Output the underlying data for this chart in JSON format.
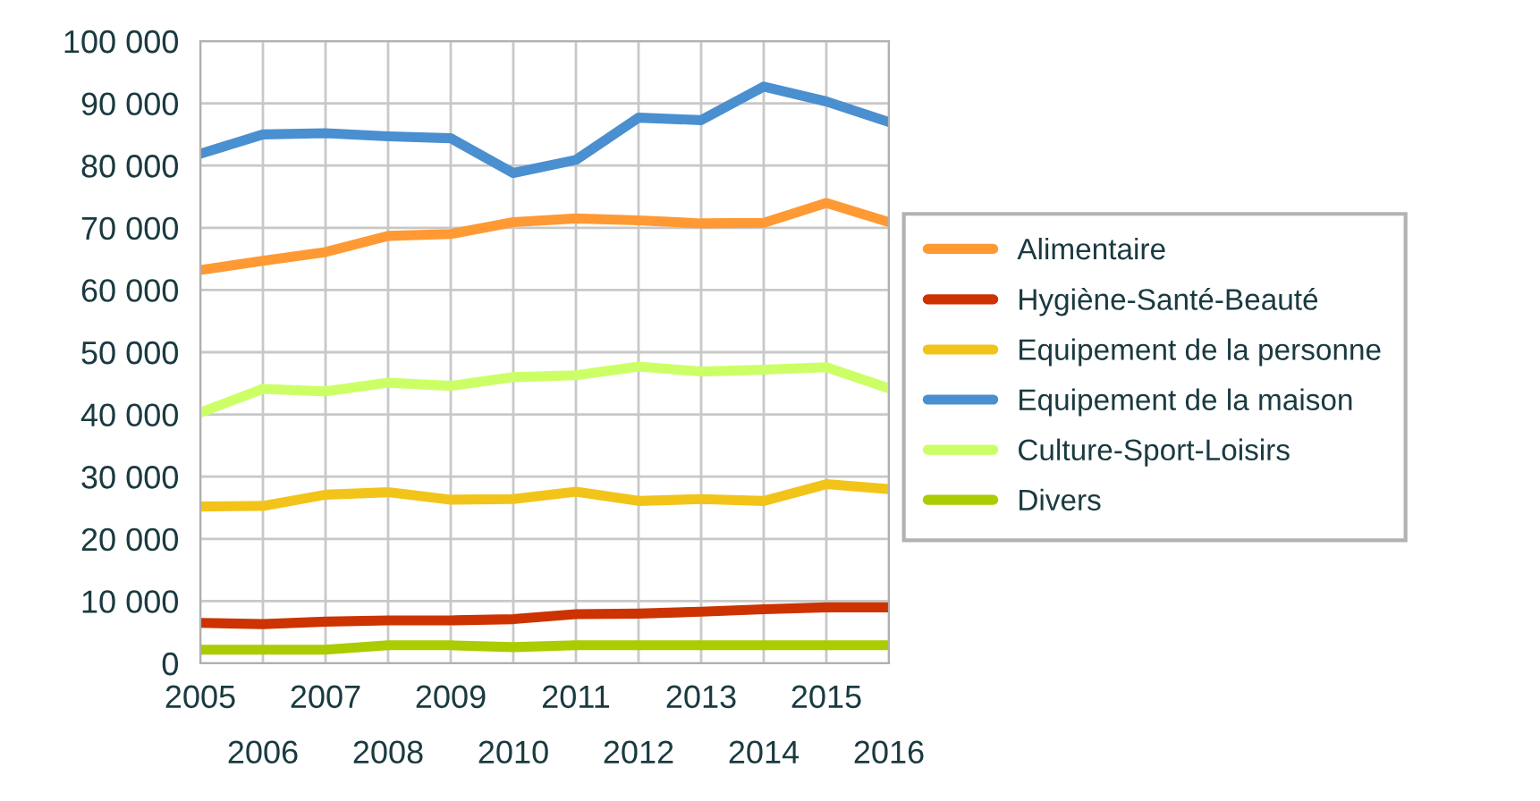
{
  "chart_data": {
    "type": "line",
    "x": [
      2005,
      2006,
      2007,
      2008,
      2009,
      2010,
      2011,
      2012,
      2013,
      2014,
      2015,
      2016
    ],
    "series": [
      {
        "name": "Alimentaire",
        "color": "#ff9933",
        "values": [
          63200,
          64700,
          66100,
          68700,
          69000,
          70900,
          71500,
          71200,
          70700,
          70800,
          74000,
          70900
        ]
      },
      {
        "name": "Hygiène-Santé-Beauté",
        "color": "#cc3300",
        "values": [
          6500,
          6300,
          6700,
          6900,
          6900,
          7100,
          7900,
          8000,
          8300,
          8700,
          9000,
          9000
        ]
      },
      {
        "name": "Equipement de la personne",
        "color": "#f2c41a",
        "values": [
          25200,
          25300,
          27100,
          27500,
          26300,
          26400,
          27600,
          26100,
          26400,
          26100,
          28800,
          28000
        ]
      },
      {
        "name": "Equipement de la maison",
        "color": "#4a8fd0",
        "values": [
          81900,
          85000,
          85200,
          84700,
          84400,
          78800,
          80900,
          87700,
          87300,
          92700,
          90300,
          87000
        ]
      },
      {
        "name": "Culture-Sport-Loisirs",
        "color": "#ccff66",
        "values": [
          40300,
          44100,
          43700,
          45100,
          44600,
          46000,
          46300,
          47700,
          46900,
          47200,
          47600,
          44200
        ]
      },
      {
        "name": "Divers",
        "color": "#aacc00",
        "values": [
          2200,
          2200,
          2200,
          2900,
          2900,
          2600,
          2900,
          2900,
          2900,
          2900,
          2900,
          2900
        ]
      }
    ],
    "xlim": [
      2005,
      2016
    ],
    "xticks": [
      2005,
      {
        "value": 2006,
        "label": null
      },
      2007,
      {
        "value": 2008,
        "label": null
      },
      2009,
      {
        "value": 2010,
        "label": null
      },
      2011,
      {
        "value": 2012,
        "label": null
      },
      2013,
      {
        "value": 2014,
        "label": null
      },
      2015,
      {
        "value": 2016,
        "label": null
      }
    ],
    "x2lim": [
      2005,
      2016
    ],
    "x2ticks": [
      2006,
      2008,
      2010,
      2012,
      2014,
      2016
    ],
    "ylim": [
      0,
      100000
    ],
    "yticks": [
      0,
      {
        "value": 10000,
        "label": "10 000"
      },
      {
        "value": 20000,
        "label": "20 000"
      },
      {
        "value": 30000,
        "label": "30 000"
      },
      {
        "value": 40000,
        "label": "40 000"
      },
      {
        "value": 50000,
        "label": "50 000"
      },
      {
        "value": 60000,
        "label": "60 000"
      },
      {
        "value": 70000,
        "label": "70 000"
      },
      {
        "value": 80000,
        "label": "80 000"
      },
      {
        "value": 90000,
        "label": "90 000"
      },
      {
        "value": 100000,
        "label": "100 000"
      }
    ],
    "grid": true,
    "legend": "right",
    "marker": "none",
    "line_style": "solid"
  }
}
